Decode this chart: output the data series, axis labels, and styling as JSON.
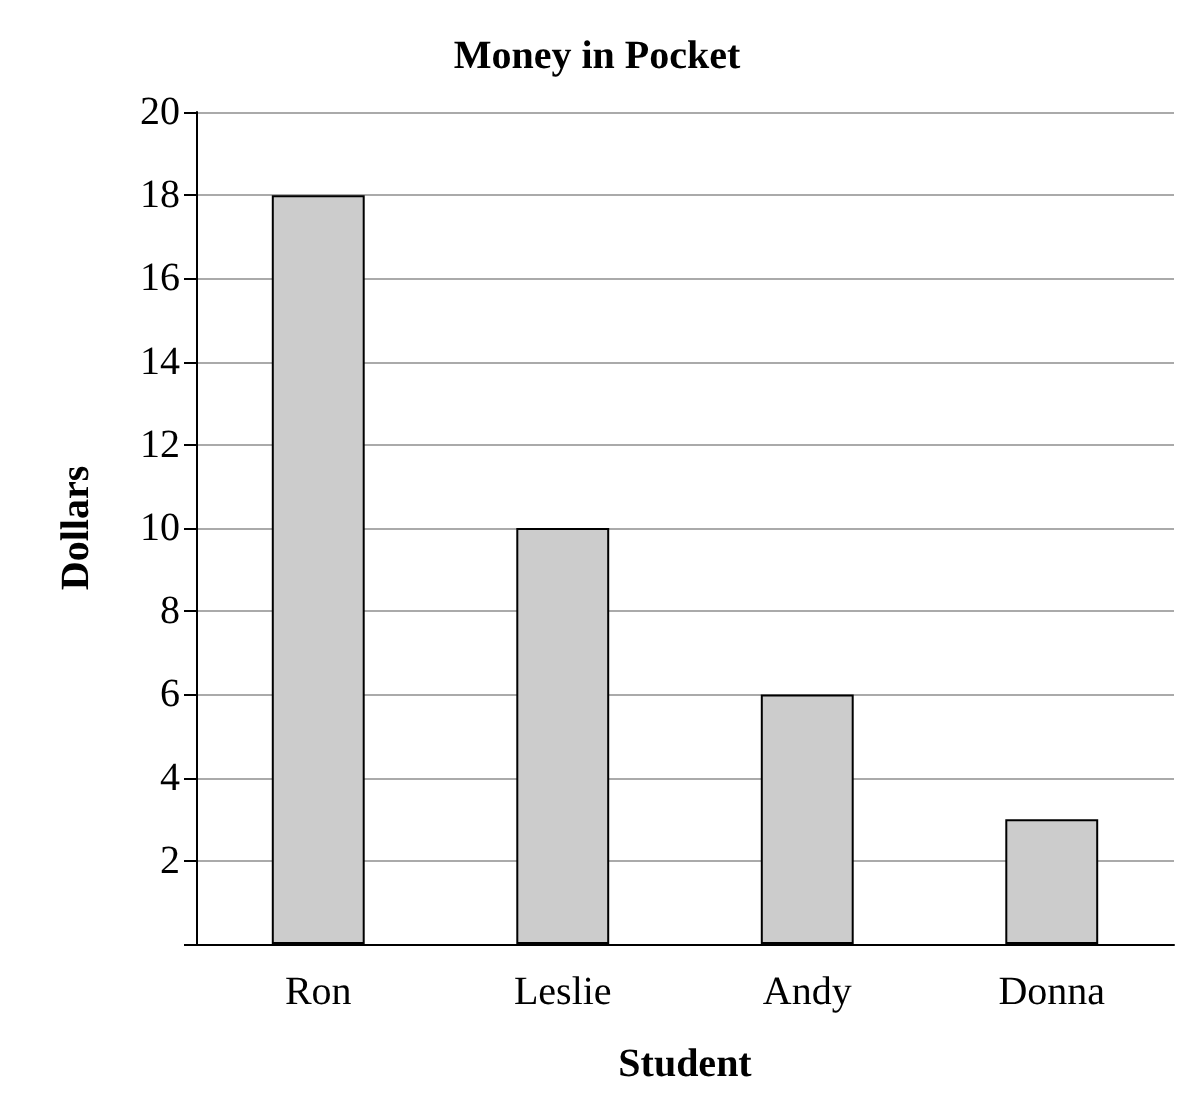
{
  "chart_data": {
    "type": "bar",
    "title": "Money in Pocket",
    "xlabel": "Student",
    "ylabel": "Dollars",
    "categories": [
      "Ron",
      "Leslie",
      "Andy",
      "Donna"
    ],
    "values": [
      18,
      10,
      6,
      3
    ],
    "color": "#cccccc",
    "ylim": [
      0,
      20
    ],
    "yticks": [
      {
        "value": 0,
        "label": null
      },
      2,
      4,
      6,
      8,
      10,
      12,
      14,
      16,
      18,
      20
    ],
    "grid": "y"
  }
}
